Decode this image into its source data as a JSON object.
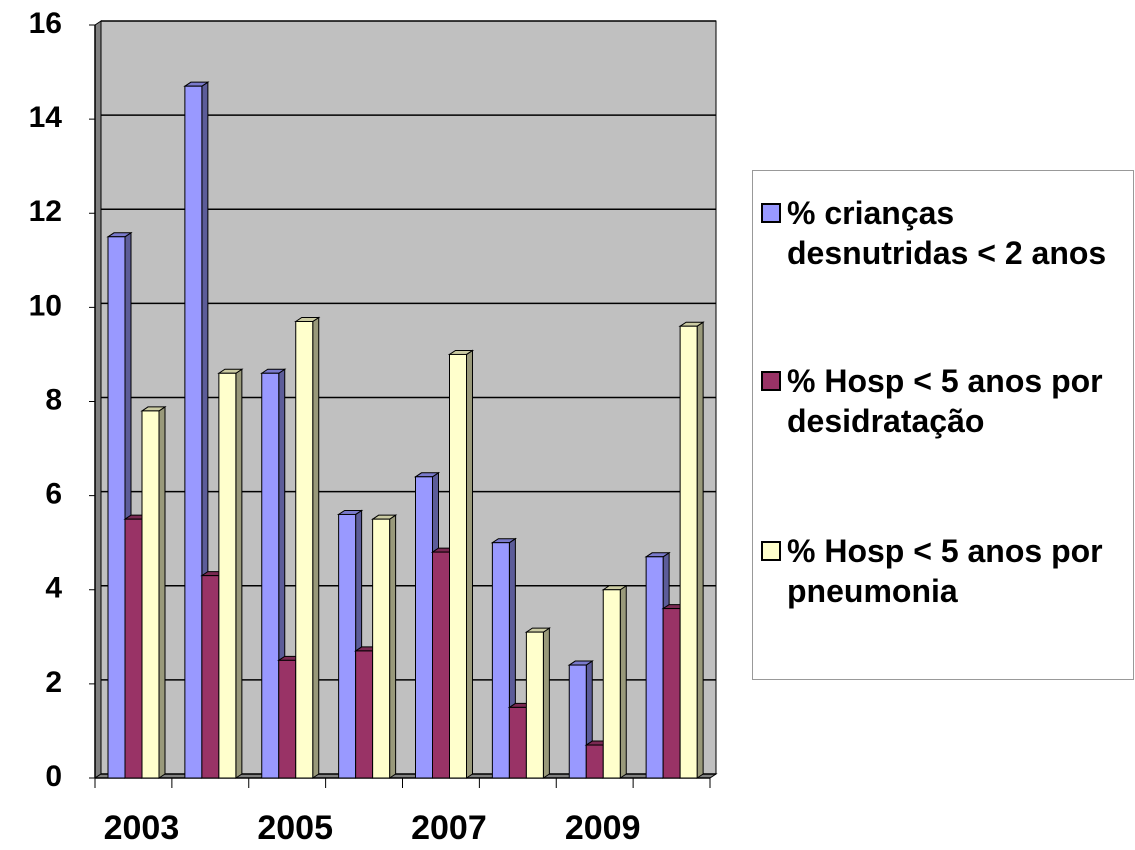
{
  "chart_data": {
    "type": "bar",
    "categories": [
      "2003",
      null,
      "2005",
      null,
      "2007",
      null,
      "2009",
      null
    ],
    "series": [
      {
        "name": "% crianças desnutridas < 2 anos",
        "color": "#9999ff",
        "values": [
          11.5,
          14.7,
          8.6,
          5.6,
          6.4,
          5.0,
          2.4,
          4.7
        ]
      },
      {
        "name": "% Hosp < 5 anos por desidratação",
        "color": "#993366",
        "values": [
          5.5,
          4.3,
          2.5,
          2.7,
          4.8,
          1.5,
          0.7,
          3.6
        ]
      },
      {
        "name": "% Hosp < 5 anos por pneumonia",
        "color": "#ffffcc",
        "values": [
          7.8,
          8.6,
          9.7,
          5.5,
          9.0,
          3.1,
          4.0,
          9.6
        ]
      }
    ],
    "ylim": [
      0,
      16
    ],
    "yticks": [
      0,
      2,
      4,
      6,
      8,
      10,
      12,
      14,
      16
    ],
    "grid": true,
    "legend": "right"
  }
}
